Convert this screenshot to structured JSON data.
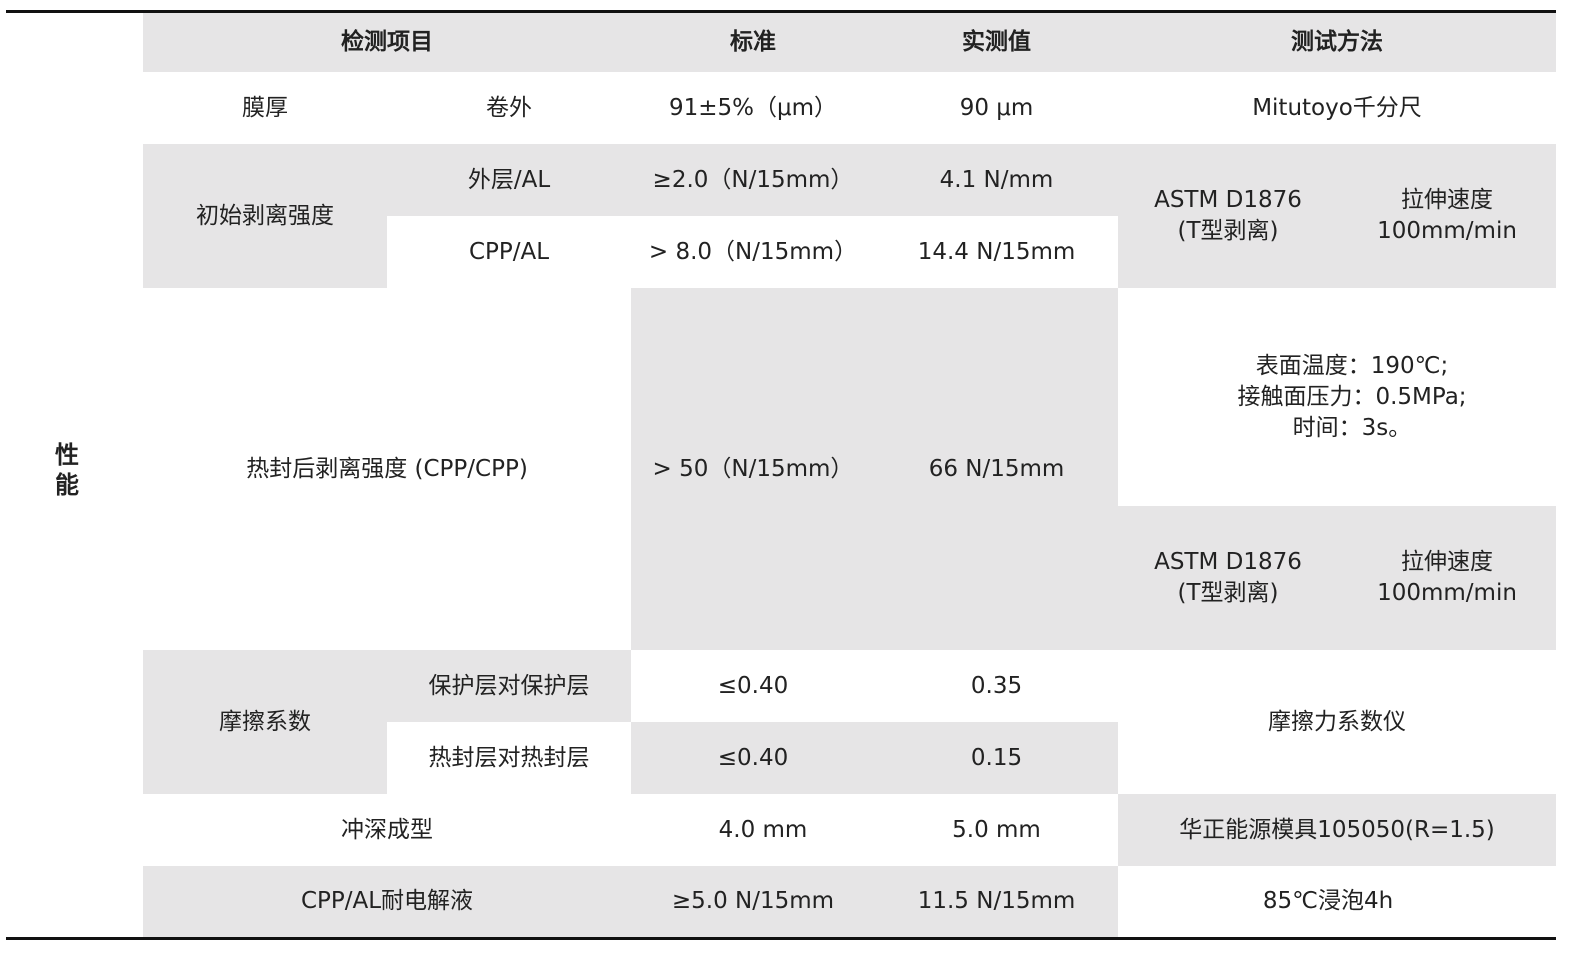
{
  "section_label": "性\n能",
  "header": {
    "item": "检测项目",
    "standard": "标准",
    "measured": "实测值",
    "method": "测试方法"
  },
  "rows": {
    "thickness": {
      "item": "膜厚",
      "sub": "卷外",
      "standard": "91±5%（μm）",
      "measured": "90 μm",
      "method": "Mitutoyo千分尺"
    },
    "peel": {
      "item": "初始剥离强度",
      "outer": {
        "sub": "外层/AL",
        "standard": "≥2.0（N/15mm）",
        "measured": "4.1 N/mm"
      },
      "cpp": {
        "sub": "CPP/AL",
        "standard": "> 8.0（N/15mm）",
        "measured": "14.4 N/15mm"
      },
      "method": "ASTM D1876\n(T型剥离)",
      "speed": "拉伸速度\n100mm/min"
    },
    "heat_seal": {
      "item": "热封后剥离强度 (CPP/CPP)",
      "standard": "> 50（N/15mm）",
      "measured": "66 N/15mm",
      "conditions": "表面温度：190℃;\n接触面压力：0.5MPa;\n时间：3s。",
      "method": "ASTM D1876\n(T型剥离)",
      "speed": "拉伸速度\n100mm/min"
    },
    "friction": {
      "item": "摩擦系数",
      "protect": {
        "sub": "保护层对保护层",
        "standard": "≤0.40",
        "measured": "0.35"
      },
      "seal": {
        "sub": "热封层对热封层",
        "standard": "≤0.40",
        "measured": "0.15"
      },
      "method": "摩擦力系数仪"
    },
    "deep_draw": {
      "item": "冲深成型",
      "standard": "4.0 mm",
      "measured": "5.0 mm",
      "method": "华正能源模具105050(R=1.5)"
    },
    "electrolyte": {
      "item": "CPP/AL耐电解液",
      "standard": "≥5.0 N/15mm",
      "measured": "11.5 N/15mm",
      "method": "85℃浸泡4h"
    }
  },
  "colors": {
    "cell_gray": "#e6e5e6",
    "text": "#222222",
    "rule": "#111111"
  }
}
